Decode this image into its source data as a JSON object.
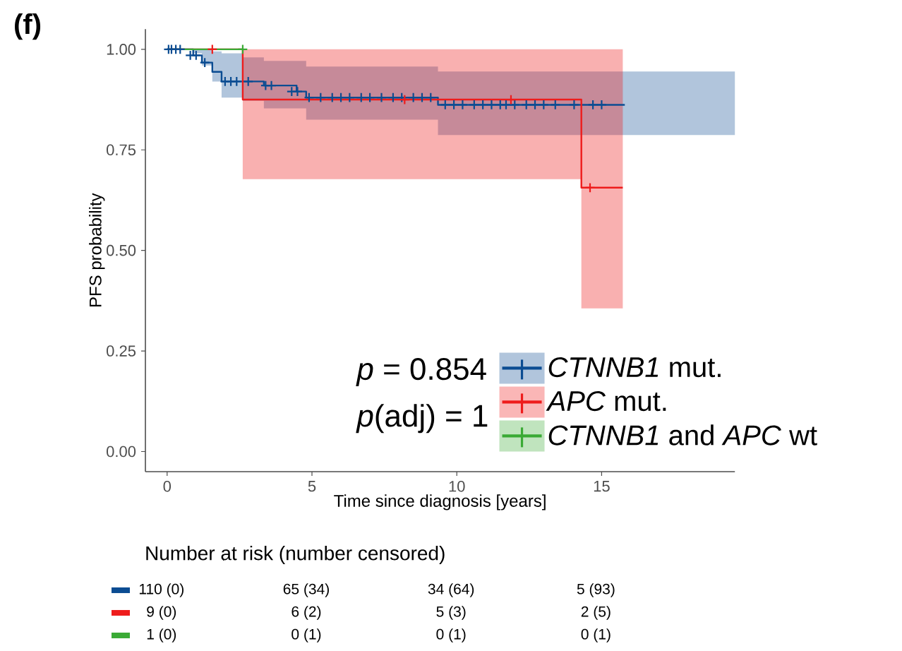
{
  "chart_data": {
    "type": "step",
    "xlabel": "Time since diagnosis [years]",
    "ylabel": "PFS probability",
    "xlim": [
      -0.75,
      19.6
    ],
    "ylim": [
      -0.05,
      1.05
    ],
    "xticks": [
      0,
      5,
      10,
      15
    ],
    "yticks": [
      {
        "value": 0,
        "label": "0.00"
      },
      {
        "value": 0.25,
        "label": "0.25"
      },
      {
        "value": 0.5,
        "label": "0.50"
      },
      {
        "value": 0.75,
        "label": "0.75"
      },
      {
        "value": 1,
        "label": "1.00"
      }
    ],
    "legend": "bottom right",
    "annotations": [
      "(f)",
      "*p* = 0.854",
      "*p*(adj) = 1",
      "Number at risk (number censored)",
      "110 (0)",
      "65 (34)",
      "34 (64)",
      "5 (93)",
      "9 (0)",
      "6 (2)",
      "5 (3)",
      "2 (5)",
      "1 (0)",
      "0 (1)",
      "0 (1)",
      "0 (1)"
    ],
    "series": [
      {
        "name": "*CTNNB1* mut.",
        "color": "#0b4c92",
        "marker": "none",
        "x": [
          0,
          0.9,
          1.2,
          1.56,
          1.88,
          2.61,
          3.34,
          4.47,
          4.8,
          9.35,
          15.8,
          19.6
        ],
        "values": [
          1,
          0.985,
          0.967,
          0.944,
          0.92,
          0.92,
          0.91,
          0.895,
          0.88,
          0.862,
          0.862,
          null
        ],
        "lower": [
          1,
          0.99,
          0.96,
          0.92,
          0.88,
          0.872,
          0.853,
          0.853,
          0.825,
          0.787,
          0.787,
          0.787
        ],
        "upper": [
          1,
          1,
          1,
          0.995,
          0.99,
          0.98,
          0.971,
          0.971,
          0.957,
          0.945,
          0.945,
          0.945
        ]
      },
      {
        "name": "*APC* mut.",
        "color": "#ee1c1c",
        "marker": "none",
        "x": [
          0,
          2.61,
          14.3,
          15.73
        ],
        "values": [
          1,
          0.875,
          0.656,
          0.656
        ],
        "lower": [
          null,
          0.677,
          0.356,
          0.356
        ],
        "upper": [
          null,
          1,
          1,
          1
        ]
      },
      {
        "name": "*CTNNB1* and *APC* wt",
        "color": "#3aaa35",
        "marker": "none",
        "x": [
          0,
          2.61
        ],
        "values": [
          1,
          1
        ]
      },
      {
        "color": "#0b4c92",
        "type": "scatter",
        "marker": "cross",
        "x": [
          0.05,
          0.15,
          0.3,
          0.45,
          0.8,
          1.0,
          1.3,
          2.0,
          2.2,
          2.4,
          2.8,
          3.4,
          3.6,
          4.3,
          4.5,
          4.9,
          5.3,
          5.7,
          6.0,
          6.3,
          6.7,
          7.0,
          7.4,
          7.8,
          8.1,
          8.5,
          8.8,
          9.1,
          9.6,
          9.9,
          10.2,
          10.6,
          10.9,
          11.2,
          11.5,
          11.7,
          12.0,
          12.4,
          12.7,
          13.0,
          13.4,
          14.05,
          14.7,
          15.0
        ],
        "values": [
          1,
          1,
          1,
          1,
          0.985,
          0.985,
          0.967,
          0.92,
          0.92,
          0.92,
          0.92,
          0.91,
          0.91,
          0.895,
          0.895,
          0.88,
          0.88,
          0.88,
          0.88,
          0.88,
          0.88,
          0.88,
          0.88,
          0.88,
          0.88,
          0.88,
          0.88,
          0.88,
          0.862,
          0.862,
          0.862,
          0.862,
          0.862,
          0.862,
          0.862,
          0.862,
          0.862,
          0.862,
          0.862,
          0.862,
          0.862,
          0.862,
          0.862,
          0.862
        ]
      },
      {
        "color": "#ee1c1c",
        "type": "scatter",
        "marker": "cross",
        "x": [
          1.56,
          8.2,
          11.87,
          14.6
        ],
        "values": [
          1,
          0.875,
          0.875,
          0.656
        ]
      },
      {
        "color": "#3aaa35",
        "type": "scatter",
        "marker": "cross",
        "x": [
          2.61
        ],
        "values": [
          1
        ]
      }
    ]
  }
}
